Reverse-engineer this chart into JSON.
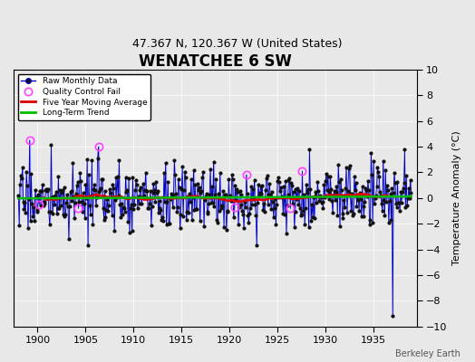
{
  "title": "WENATCHEE 6 SW",
  "subtitle": "47.367 N, 120.367 W (United States)",
  "ylabel": "Temperature Anomaly (°C)",
  "xlim": [
    1897.5,
    1939.5
  ],
  "ylim": [
    -10,
    10
  ],
  "yticks": [
    -10,
    -8,
    -6,
    -4,
    -2,
    0,
    2,
    4,
    6,
    8,
    10
  ],
  "xticks": [
    1900,
    1905,
    1910,
    1915,
    1920,
    1925,
    1930,
    1935
  ],
  "background_color": "#e8e8e8",
  "bar_color": "#aaaaee",
  "line_color": "#0000bb",
  "dot_color": "#111111",
  "qc_fail_color": "#ff44ff",
  "moving_avg_color": "#dd0000",
  "trend_color": "#00bb00",
  "watermark": "Berkeley Earth",
  "title_fontsize": 12,
  "subtitle_fontsize": 9,
  "ylabel_fontsize": 8,
  "tick_fontsize": 8,
  "watermark_fontsize": 7,
  "seed": 17,
  "start_year": 1898,
  "end_year": 1938,
  "trend_slope": 0.008,
  "trend_intercept": -0.15,
  "seasonal_amp": 0.5,
  "noise_std": 1.2,
  "qc_fail_months": [
    14,
    26,
    75,
    100,
    270,
    285,
    340,
    355
  ]
}
